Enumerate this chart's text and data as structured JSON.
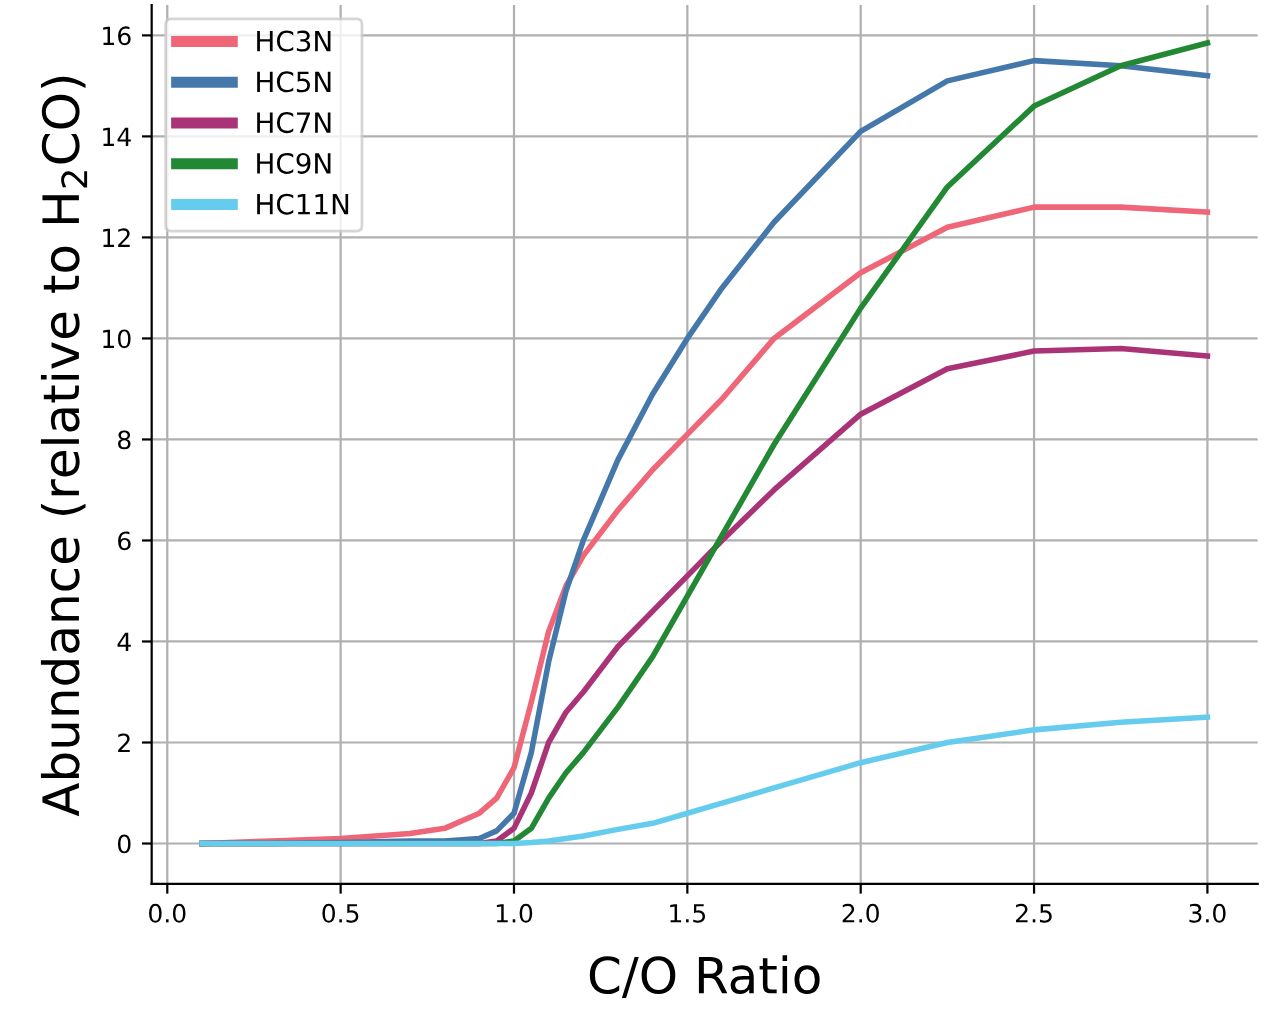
{
  "chart_data": {
    "type": "line",
    "xlabel": "C/O Ratio",
    "ylabel": "Abundance (relative to H$_{2}$CO)",
    "x": [
      0.1,
      0.3,
      0.5,
      0.7,
      0.8,
      0.9,
      0.95,
      1.0,
      1.05,
      1.1,
      1.15,
      1.2,
      1.3,
      1.4,
      1.5,
      1.6,
      1.75,
      2.0,
      2.25,
      2.5,
      2.75,
      3.0
    ],
    "series": [
      {
        "name": "HC3N",
        "color": "#ee6677",
        "values": [
          0.0,
          0.05,
          0.1,
          0.2,
          0.3,
          0.6,
          0.9,
          1.5,
          2.8,
          4.2,
          5.1,
          5.7,
          6.6,
          7.4,
          8.1,
          8.8,
          10.0,
          11.3,
          12.2,
          12.6,
          12.6,
          12.5
        ]
      },
      {
        "name": "HC5N",
        "color": "#4477aa",
        "values": [
          0.0,
          0.0,
          0.02,
          0.05,
          0.05,
          0.1,
          0.25,
          0.6,
          1.8,
          3.6,
          5.0,
          6.0,
          7.6,
          8.9,
          10.0,
          11.0,
          12.3,
          14.1,
          15.1,
          15.5,
          15.4,
          15.2
        ]
      },
      {
        "name": "HC7N",
        "color": "#aa3377",
        "values": [
          0.0,
          0.0,
          0.0,
          0.0,
          0.0,
          0.0,
          0.05,
          0.3,
          1.0,
          2.0,
          2.6,
          3.0,
          3.9,
          4.6,
          5.3,
          6.0,
          7.0,
          8.5,
          9.4,
          9.75,
          9.8,
          9.65
        ]
      },
      {
        "name": "HC9N",
        "color": "#228833",
        "values": [
          0.0,
          0.0,
          0.0,
          0.0,
          0.0,
          0.0,
          0.0,
          0.05,
          0.3,
          0.9,
          1.4,
          1.8,
          2.7,
          3.7,
          4.9,
          6.1,
          7.9,
          10.6,
          13.0,
          14.6,
          15.4,
          15.85
        ]
      },
      {
        "name": "HC11N",
        "color": "#66ccee",
        "values": [
          0.0,
          0.0,
          0.0,
          0.0,
          0.0,
          0.0,
          0.0,
          0.0,
          0.02,
          0.05,
          0.1,
          0.15,
          0.28,
          0.4,
          0.6,
          0.8,
          1.1,
          1.6,
          2.0,
          2.25,
          2.4,
          2.5
        ]
      }
    ],
    "xlim": [
      -0.045,
      3.145
    ],
    "ylim": [
      -0.8,
      16.6
    ],
    "xticks": [
      {
        "value": 0.0,
        "label": "0.0"
      },
      0.5,
      {
        "value": 1.0,
        "label": "1.0"
      },
      1.5,
      {
        "value": 2.0,
        "label": "2.0"
      },
      2.5,
      {
        "value": 3.0,
        "label": "3.0"
      }
    ],
    "yticks": [
      0,
      2,
      4,
      6,
      8,
      10,
      12,
      14,
      16
    ],
    "grid": true,
    "legend": "top left",
    "line_style": "solid",
    "marker": "none"
  }
}
